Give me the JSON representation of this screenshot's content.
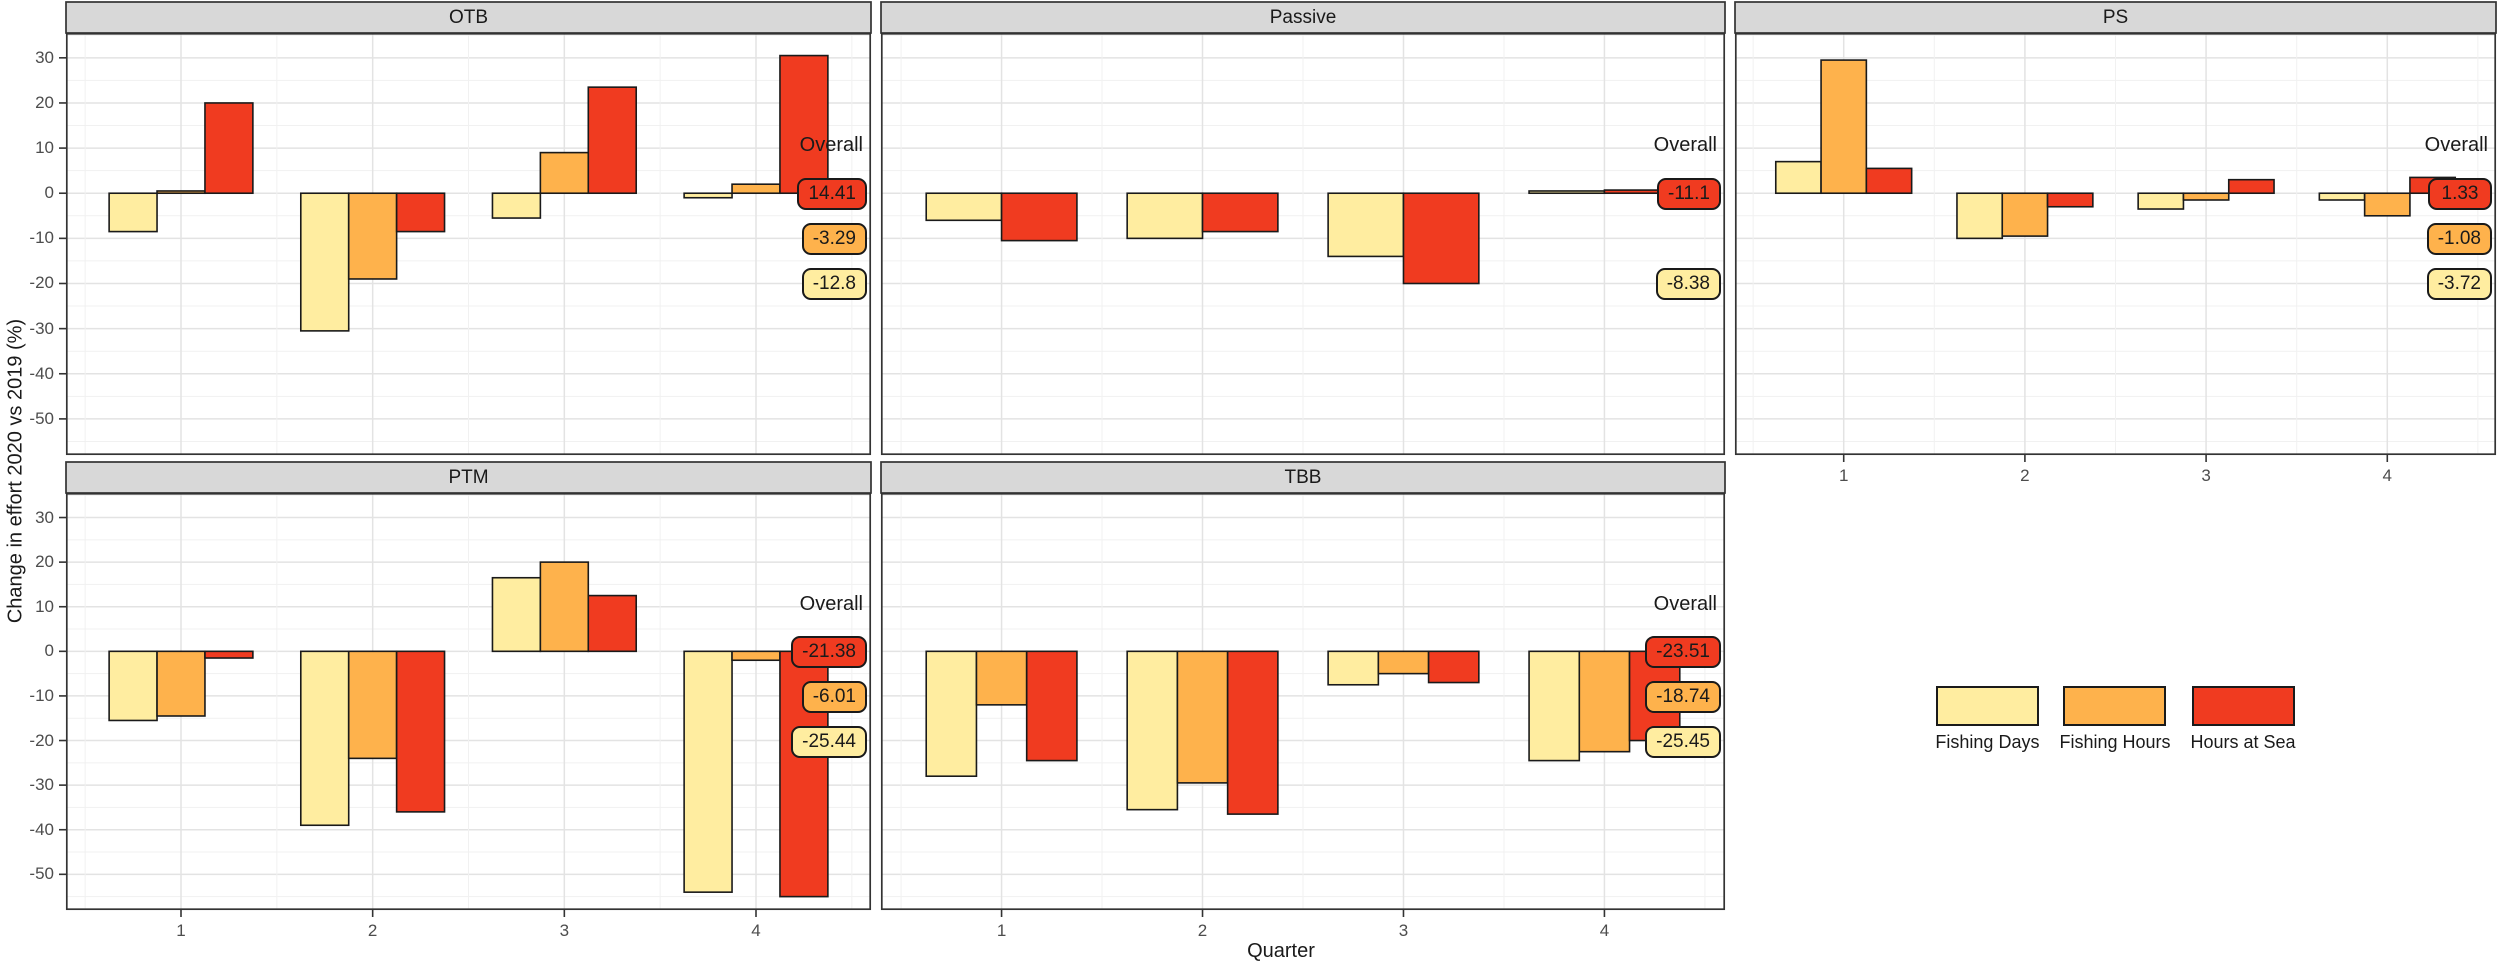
{
  "figure": {
    "xlabel": "Quarter",
    "ylabel": "Change in effort 2020 vs 2019 (%)"
  },
  "chart_data": {
    "type": "bar",
    "title": "",
    "xlabel": "Quarter",
    "ylabel": "Change in effort 2020 vs 2019 (%)",
    "categories": [
      "1",
      "2",
      "3",
      "4"
    ],
    "yticks": [
      30,
      20,
      10,
      0,
      -10,
      -20,
      -30,
      -40,
      -50
    ],
    "ylim": [
      -58,
      35.5
    ],
    "grid": "major-and-minor",
    "overall_heading": "Overall",
    "legend": [
      "Fishing Days",
      "Fishing Hours",
      "Hours at Sea"
    ],
    "series_colors": {
      "Fishing Days": "#FFEDA0",
      "Fishing Hours": "#FEB24C",
      "Hours at Sea": "#F03B20"
    },
    "facets": [
      {
        "title": "OTB",
        "row": 0,
        "col": 0,
        "show_x_axis": false,
        "series": [
          {
            "name": "Fishing Days",
            "values": [
              -8.5,
              -30.5,
              -5.5,
              -1
            ]
          },
          {
            "name": "Fishing Hours",
            "values": [
              0.5,
              -19,
              9,
              2
            ]
          },
          {
            "name": "Hours at Sea",
            "values": [
              20,
              -8.5,
              23.5,
              30.5
            ]
          }
        ],
        "overall": [
          {
            "name": "Hours at Sea",
            "label": "14.41"
          },
          {
            "name": "Fishing Hours",
            "label": "-3.29"
          },
          {
            "name": "Fishing Days",
            "label": "-12.8"
          }
        ]
      },
      {
        "title": "Passive",
        "row": 0,
        "col": 1,
        "show_x_axis": false,
        "series": [
          {
            "name": "Fishing Days",
            "values": [
              -6,
              -10,
              -14,
              0.5
            ]
          },
          {
            "name": "Hours at Sea",
            "values": [
              -10.5,
              -8.5,
              -20,
              0.7
            ]
          }
        ],
        "overall": [
          {
            "name": "Hours at Sea",
            "label": "-11.1"
          },
          {
            "name": "Fishing Days",
            "label": "-8.38"
          }
        ]
      },
      {
        "title": "PS",
        "row": 0,
        "col": 2,
        "show_x_axis": true,
        "series": [
          {
            "name": "Fishing Days",
            "values": [
              7,
              -10,
              -3.5,
              -1.5
            ]
          },
          {
            "name": "Fishing Hours",
            "values": [
              29.5,
              -9.5,
              -1.5,
              -5
            ]
          },
          {
            "name": "Hours at Sea",
            "values": [
              5.5,
              -3,
              3,
              3.5
            ]
          }
        ],
        "overall": [
          {
            "name": "Hours at Sea",
            "label": "1.33"
          },
          {
            "name": "Fishing Hours",
            "label": "-1.08"
          },
          {
            "name": "Fishing Days",
            "label": "-3.72"
          }
        ]
      },
      {
        "title": "PTM",
        "row": 1,
        "col": 0,
        "show_x_axis": true,
        "series": [
          {
            "name": "Fishing Days",
            "values": [
              -15.5,
              -39,
              16.5,
              -54
            ]
          },
          {
            "name": "Fishing Hours",
            "values": [
              -14.5,
              -24,
              20,
              -2
            ]
          },
          {
            "name": "Hours at Sea",
            "values": [
              -1.5,
              -36,
              12.5,
              -55
            ]
          }
        ],
        "overall": [
          {
            "name": "Hours at Sea",
            "label": "-21.38"
          },
          {
            "name": "Fishing Hours",
            "label": "-6.01"
          },
          {
            "name": "Fishing Days",
            "label": "-25.44"
          }
        ]
      },
      {
        "title": "TBB",
        "row": 1,
        "col": 1,
        "show_x_axis": true,
        "series": [
          {
            "name": "Fishing Days",
            "values": [
              -28,
              -35.5,
              -7.5,
              -24.5
            ]
          },
          {
            "name": "Fishing Hours",
            "values": [
              -12,
              -29.5,
              -5,
              -22.5
            ]
          },
          {
            "name": "Hours at Sea",
            "values": [
              -24.5,
              -36.5,
              -7,
              -20
            ]
          }
        ],
        "overall": [
          {
            "name": "Hours at Sea",
            "label": "-23.51"
          },
          {
            "name": "Fishing Hours",
            "label": "-18.74"
          },
          {
            "name": "Fishing Days",
            "label": "-25.45"
          }
        ]
      }
    ]
  }
}
